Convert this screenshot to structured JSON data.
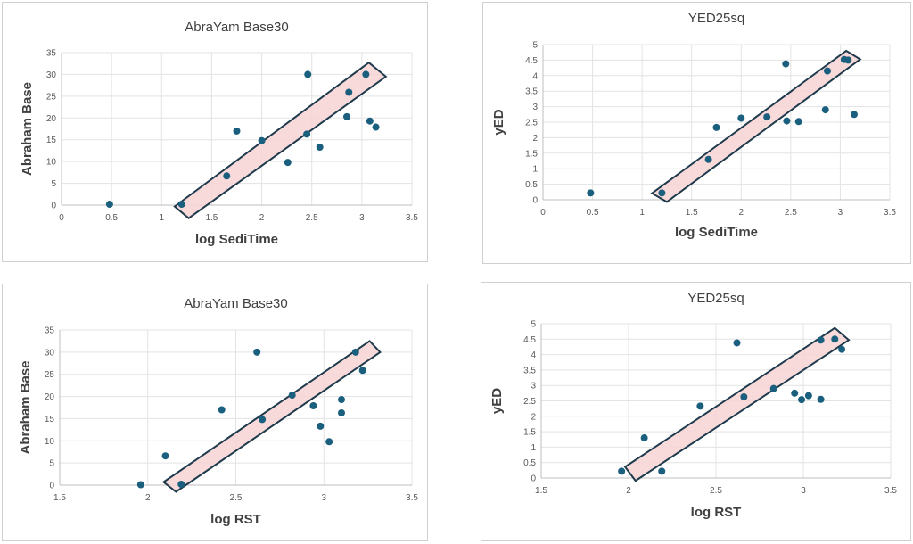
{
  "chart_data": [
    {
      "type": "scatter",
      "title": "AbraYam Base30",
      "xlabel": "log SediTime",
      "ylabel": "Abraham Base",
      "xlim": [
        0,
        3.5
      ],
      "ylim": [
        0,
        35
      ],
      "xticks": [
        0,
        0.5,
        1,
        1.5,
        2,
        2.5,
        3,
        3.5
      ],
      "yticks": [
        0,
        5,
        10,
        15,
        20,
        25,
        30,
        35
      ],
      "xtick_labels": [
        "0",
        "0.5",
        "1",
        "1.5",
        "2",
        "2.5",
        "3",
        "3.5"
      ],
      "ytick_labels": [
        "0",
        "5",
        "10",
        "15",
        "20",
        "25",
        "30",
        "35"
      ],
      "grid": true,
      "x": [
        0.48,
        1.2,
        1.65,
        1.75,
        2.0,
        2.26,
        2.45,
        2.46,
        2.58,
        2.85,
        2.87,
        3.04,
        3.08,
        3.14
      ],
      "y": [
        0.2,
        0.2,
        6.7,
        17.0,
        14.8,
        9.8,
        16.3,
        30.0,
        13.3,
        20.3,
        25.9,
        30.0,
        19.3,
        17.9
      ],
      "band": [
        [
          1.13,
          -0.3
        ],
        [
          3.07,
          32.7
        ],
        [
          3.24,
          29.5
        ],
        [
          1.27,
          -3.0
        ]
      ],
      "point_color": "#1b5f7e",
      "band_fill": "#f7d4d4",
      "band_stroke": "#1e3a4c"
    },
    {
      "type": "scatter",
      "title": "YED25sq",
      "xlabel": "log SediTime",
      "ylabel": "yED",
      "xlim": [
        0,
        3.5
      ],
      "ylim": [
        0,
        5
      ],
      "xticks": [
        0,
        0.5,
        1,
        1.5,
        2,
        2.5,
        3,
        3.5
      ],
      "yticks": [
        0,
        0.5,
        1,
        1.5,
        2,
        2.5,
        3,
        3.5,
        4,
        4.5,
        5
      ],
      "xtick_labels": [
        "0",
        "0.5",
        "1",
        "1.5",
        "2",
        "2.5",
        "3",
        "3.5"
      ],
      "ytick_labels": [
        "0",
        "0.5",
        "1",
        "1.5",
        "2",
        "2.5",
        "3",
        "3.5",
        "4",
        "4.5",
        "5"
      ],
      "grid": true,
      "x": [
        0.48,
        1.2,
        1.67,
        1.75,
        2.0,
        2.26,
        2.45,
        2.46,
        2.58,
        2.85,
        2.87,
        3.04,
        3.08,
        3.14
      ],
      "y": [
        0.22,
        0.22,
        1.3,
        2.33,
        2.63,
        2.67,
        4.38,
        2.54,
        2.52,
        2.9,
        4.15,
        4.52,
        4.5,
        2.75
      ],
      "band": [
        [
          1.1,
          0.21
        ],
        [
          3.06,
          4.8
        ],
        [
          3.2,
          4.53
        ],
        [
          1.25,
          -0.07
        ]
      ],
      "point_color": "#1b5f7e",
      "band_fill": "#f7d4d4",
      "band_stroke": "#1e3a4c"
    },
    {
      "type": "scatter",
      "title": "AbraYam Base30",
      "xlabel": "log RST",
      "ylabel": "Abraham Base",
      "xlim": [
        1.5,
        3.5
      ],
      "ylim": [
        0,
        35
      ],
      "xticks": [
        1.5,
        2,
        2.5,
        3,
        3.5
      ],
      "yticks": [
        0,
        5,
        10,
        15,
        20,
        25,
        30,
        35
      ],
      "xtick_labels": [
        "1.5",
        "2",
        "2.5",
        "3",
        "3.5"
      ],
      "ytick_labels": [
        "0",
        "5",
        "10",
        "15",
        "20",
        "25",
        "30",
        "35"
      ],
      "grid": true,
      "x": [
        1.96,
        2.1,
        2.19,
        2.42,
        2.62,
        2.65,
        2.82,
        2.94,
        2.98,
        3.03,
        3.1,
        3.1,
        3.18,
        3.22
      ],
      "y": [
        0.1,
        6.6,
        0.2,
        17.0,
        30.0,
        14.8,
        20.3,
        17.9,
        13.3,
        9.8,
        19.3,
        16.3,
        30.0,
        25.9
      ],
      "band": [
        [
          2.09,
          0.7
        ],
        [
          3.26,
          32.5
        ],
        [
          3.32,
          30.0
        ],
        [
          2.16,
          -1.5
        ]
      ],
      "point_color": "#1b5f7e",
      "band_fill": "#f7d4d4",
      "band_stroke": "#1e3a4c"
    },
    {
      "type": "scatter",
      "title": "YED25sq",
      "xlabel": "log RST",
      "ylabel": "yED",
      "xlim": [
        1.5,
        3.5
      ],
      "ylim": [
        0,
        5
      ],
      "xticks": [
        1.5,
        2,
        2.5,
        3,
        3.5
      ],
      "yticks": [
        0,
        0.5,
        1,
        1.5,
        2,
        2.5,
        3,
        3.5,
        4,
        4.5,
        5
      ],
      "xtick_labels": [
        "1.5",
        "2",
        "2.5",
        "3",
        "3.5"
      ],
      "ytick_labels": [
        "0",
        "0.5",
        "1",
        "1.5",
        "2",
        "2.5",
        "3",
        "3.5",
        "4",
        "4.5",
        "5"
      ],
      "grid": true,
      "x": [
        1.96,
        2.09,
        2.19,
        2.41,
        2.62,
        2.66,
        2.83,
        2.95,
        2.99,
        3.03,
        3.1,
        3.1,
        3.18,
        3.22
      ],
      "y": [
        0.22,
        1.3,
        0.22,
        2.33,
        4.38,
        2.63,
        2.9,
        2.75,
        2.54,
        2.67,
        2.55,
        4.47,
        4.5,
        4.17
      ],
      "band": [
        [
          1.98,
          0.36
        ],
        [
          3.18,
          4.86
        ],
        [
          3.26,
          4.47
        ],
        [
          2.04,
          -0.09
        ]
      ],
      "point_color": "#1b5f7e",
      "band_fill": "#f7d4d4",
      "band_stroke": "#1e3a4c"
    }
  ]
}
